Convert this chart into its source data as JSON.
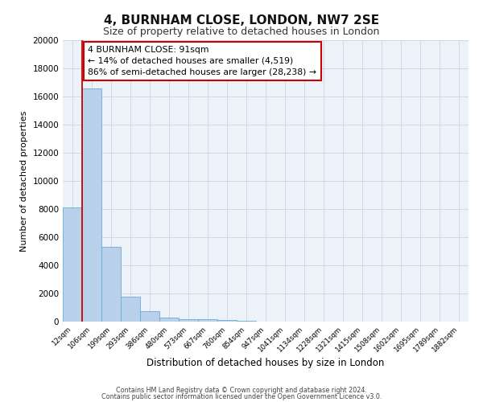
{
  "title": "4, BURNHAM CLOSE, LONDON, NW7 2SE",
  "subtitle": "Size of property relative to detached houses in London",
  "xlabel": "Distribution of detached houses by size in London",
  "ylabel": "Number of detached properties",
  "bar_labels": [
    "12sqm",
    "106sqm",
    "199sqm",
    "293sqm",
    "386sqm",
    "480sqm",
    "573sqm",
    "667sqm",
    "760sqm",
    "854sqm",
    "947sqm",
    "1041sqm",
    "1134sqm",
    "1228sqm",
    "1321sqm",
    "1415sqm",
    "1508sqm",
    "1602sqm",
    "1695sqm",
    "1789sqm",
    "1882sqm"
  ],
  "bar_values": [
    8100,
    16600,
    5300,
    1800,
    750,
    300,
    200,
    150,
    100,
    60,
    0,
    0,
    0,
    0,
    0,
    0,
    0,
    0,
    0,
    0,
    0
  ],
  "bar_color": "#b8d0ea",
  "bar_edge_color": "#6aaed6",
  "ylim": [
    0,
    20000
  ],
  "yticks": [
    0,
    2000,
    4000,
    6000,
    8000,
    10000,
    12000,
    14000,
    16000,
    18000,
    20000
  ],
  "property_line_x": 1.0,
  "property_line_color": "#cc0000",
  "annotation_title": "4 BURNHAM CLOSE: 91sqm",
  "annotation_line1": "← 14% of detached houses are smaller (4,519)",
  "annotation_line2": "86% of semi-detached houses are larger (28,238) →",
  "annotation_box_color": "#ffffff",
  "annotation_box_edge": "#cc0000",
  "footer1": "Contains HM Land Registry data © Crown copyright and database right 2024.",
  "footer2": "Contains public sector information licensed under the Open Government Licence v3.0.",
  "grid_color": "#d0d8e8",
  "bg_color": "#edf2f9",
  "fig_bg": "#ffffff"
}
